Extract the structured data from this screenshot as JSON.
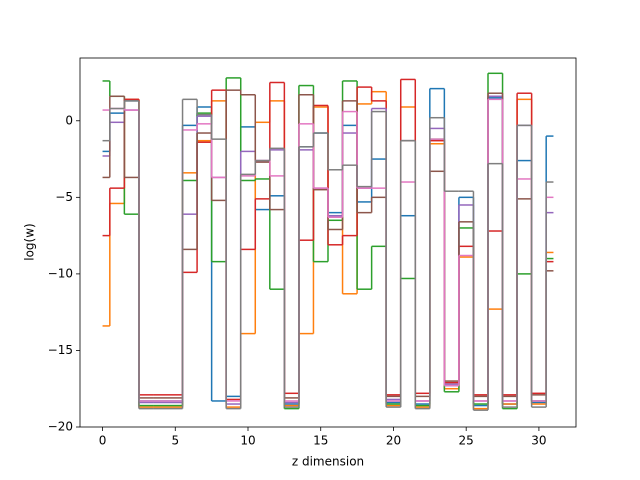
{
  "chart_data": {
    "type": "step",
    "xlabel": "z dimension",
    "ylabel": "log(w)",
    "x": [
      0,
      1,
      2,
      3,
      4,
      5,
      6,
      7,
      8,
      9,
      10,
      11,
      12,
      13,
      14,
      15,
      16,
      17,
      18,
      19,
      20,
      21,
      22,
      23,
      24,
      25,
      26,
      27,
      28,
      29,
      30,
      31
    ],
    "xlim": [
      -1.55,
      32.55
    ],
    "xticks": [
      0,
      5,
      10,
      15,
      20,
      25,
      30
    ],
    "ylim": [
      -20,
      4.1
    ],
    "yticks": [
      {
        "value": -20,
        "label": "−20"
      },
      {
        "value": -15,
        "label": "−15"
      },
      {
        "value": -10,
        "label": "−10"
      },
      {
        "value": -5,
        "label": "−5"
      },
      0
    ],
    "series": [
      {
        "color": "#1f77b4",
        "values": [
          -2,
          0.5,
          1.3,
          -18.3,
          -18.3,
          -18.3,
          -0.3,
          0.9,
          -18.3,
          -18,
          -0.4,
          -5.8,
          -4.9,
          -18.5,
          -1.7,
          -0.8,
          -6,
          -0.3,
          -5.3,
          -2.5,
          -18.4,
          -6.2,
          -18.5,
          2.1,
          -17.3,
          -5,
          -18.6,
          1.5,
          -18.5,
          -2.6,
          -18.4,
          -1
        ]
      },
      {
        "color": "#ff7f0e",
        "values": [
          -13.4,
          -5.4,
          1.4,
          -18.7,
          -18.7,
          -18.7,
          -3.4,
          -1.3,
          1.3,
          -18.7,
          -13.9,
          -0.1,
          1.3,
          -18.6,
          -13.9,
          0.9,
          -6.3,
          -11.3,
          1.1,
          1.9,
          -18.6,
          0.9,
          -18.7,
          -1.5,
          -17.5,
          -8.9,
          -18.8,
          -12.3,
          -18.5,
          1.4,
          -18.5,
          -8.6
        ]
      },
      {
        "color": "#2ca02c",
        "values": [
          2.6,
          1.6,
          -6.1,
          -18.6,
          -18.6,
          -18.6,
          -3.9,
          0.5,
          -9.2,
          2.8,
          -3.9,
          -3.8,
          -11,
          -18.8,
          2.3,
          -9.2,
          -6.5,
          2.6,
          -11,
          -8.2,
          -18.5,
          -10.3,
          -18.6,
          -1.2,
          -17.7,
          -7,
          -18.5,
          3.1,
          -18.8,
          -10,
          -18.3,
          -9
        ]
      },
      {
        "color": "#d62728",
        "values": [
          -7.5,
          -4.4,
          1.4,
          -17.9,
          -17.9,
          -17.9,
          -9.9,
          -1.4,
          2,
          -18.2,
          -8.4,
          -5.1,
          2.5,
          -17.8,
          -7.8,
          1,
          -8.1,
          -7.5,
          2.2,
          1.3,
          -17.9,
          2.7,
          -17.8,
          -1.3,
          -17.1,
          -8.2,
          -17.9,
          -7.2,
          -17.9,
          1.8,
          -17.8,
          -9.2
        ]
      },
      {
        "color": "#9467bd",
        "values": [
          -2.3,
          -0.1,
          0.7,
          -18.4,
          -18.4,
          -18.4,
          -6.1,
          0.3,
          -3.7,
          -18.5,
          -2,
          -2.6,
          -1.9,
          -18.4,
          -1.9,
          -4.4,
          -6.2,
          -0.8,
          -4.4,
          0.8,
          -18.2,
          -1.3,
          -18.3,
          -0.5,
          -17.2,
          -5.5,
          -18.3,
          1.6,
          -18.3,
          -0.3,
          -18.3,
          -6
        ]
      },
      {
        "color": "#8c564b",
        "values": [
          -3.7,
          1.6,
          -3.7,
          -18.1,
          -18.1,
          -18.1,
          -8.4,
          -0.8,
          -5.2,
          2,
          1.7,
          -2.7,
          -5.8,
          -18.1,
          1.7,
          -4.5,
          -7.1,
          1.3,
          -6,
          -5,
          -18,
          -1.3,
          -18,
          -3.3,
          -17,
          -6.6,
          -18,
          1.8,
          -18,
          -5.1,
          -17.9,
          -9.8
        ]
      },
      {
        "color": "#e377c2",
        "values": [
          0.7,
          0.8,
          0.7,
          -18.3,
          -18.3,
          -18.3,
          -0.6,
          -0.2,
          -3.7,
          -18.3,
          -3.6,
          -2.6,
          -3.6,
          -18.3,
          -0.2,
          -4.4,
          -6.3,
          0.6,
          -4.4,
          -4.4,
          -18.3,
          -4,
          -18.3,
          -1.2,
          -17.3,
          -8.8,
          -18.3,
          1.4,
          -18.3,
          -3.8,
          -18.3,
          -5
        ]
      },
      {
        "color": "#7f7f7f",
        "values": [
          -1.3,
          0.8,
          1.3,
          -18.8,
          -18.8,
          -18.8,
          1.4,
          0.4,
          -1.2,
          -18.8,
          -3.5,
          -2.6,
          -1.8,
          -18.7,
          -1.7,
          -0.8,
          -3.2,
          -2.9,
          -4.3,
          0.6,
          -18.7,
          -1.3,
          -18.8,
          0.2,
          -4.6,
          -4.6,
          -18.9,
          -2.8,
          -18.7,
          -0.3,
          -18.7,
          -4
        ]
      }
    ]
  }
}
